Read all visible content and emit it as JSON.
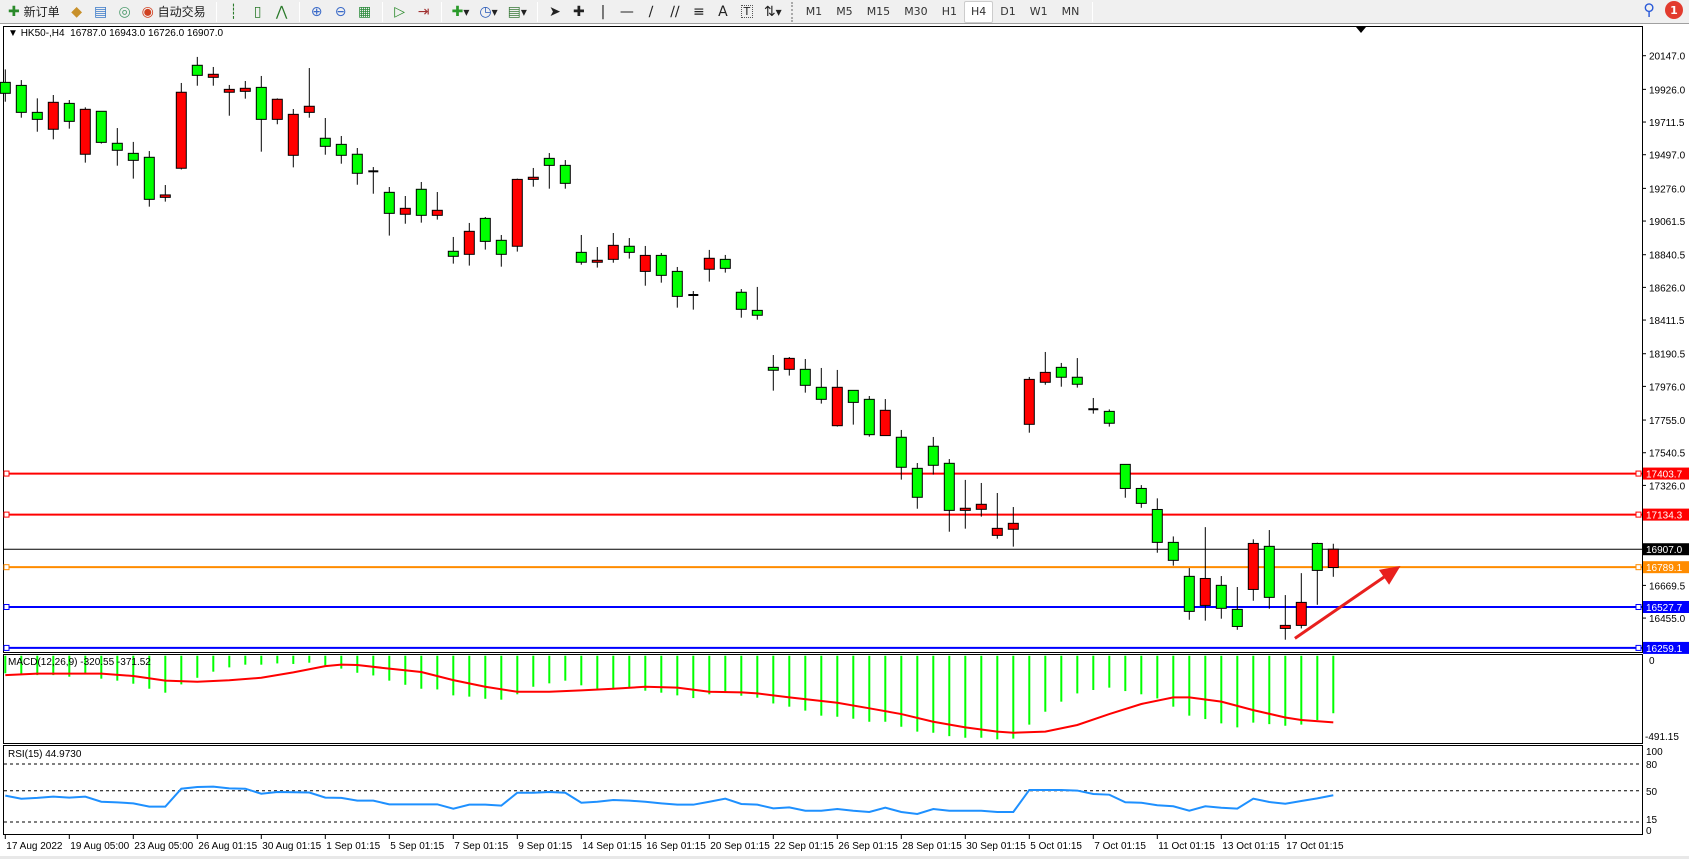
{
  "toolbar": {
    "new_order_label": "新订单",
    "auto_trading_label": "自动交易",
    "icons": [
      "new-order-icon",
      "market-watch-icon",
      "data-window-icon",
      "navigator-icon",
      "auto-trading-icon",
      "bar-chart-icon",
      "candlestick-icon",
      "line-chart-icon",
      "zoom-in-icon",
      "zoom-out-icon",
      "tile-windows-icon",
      "auto-scroll-icon",
      "chart-shift-icon",
      "indicators-icon",
      "periods-icon",
      "templates-icon",
      "cursor-icon",
      "crosshair-icon",
      "vertical-line-icon",
      "horizontal-line-icon",
      "trendline-icon",
      "equidistant-channel-icon",
      "fibonacci-icon",
      "text-icon",
      "text-label-icon",
      "arrows-icon"
    ],
    "draw_text_glyph": "A",
    "timeframes": [
      "M1",
      "M5",
      "M15",
      "M30",
      "H1",
      "H4",
      "D1",
      "W1",
      "MN"
    ],
    "active_timeframe": "H4",
    "notification_count": "1"
  },
  "chart_header": {
    "symbol": "HK50-,H4",
    "ohlc": "16787.0 16943.0 16726.0 16907.0"
  },
  "chart_data": {
    "type": "candlestick",
    "symbol": "HK50-",
    "timeframe": "H4",
    "colors": {
      "bull": "#ff0000",
      "bear": "#00ff00",
      "outline": "#000000"
    },
    "candles_ohlc": [
      [
        19972,
        20057,
        19845,
        19900
      ],
      [
        19952,
        19987,
        19740,
        19775
      ],
      [
        19775,
        19867,
        19648,
        19729
      ],
      [
        19664,
        19889,
        19598,
        19841
      ],
      [
        19834,
        19856,
        19668,
        19716
      ],
      [
        19500,
        19808,
        19445,
        19795
      ],
      [
        19782,
        19784,
        19570,
        19578
      ],
      [
        19572,
        19672,
        19425,
        19526
      ],
      [
        19506,
        19581,
        19340,
        19460
      ],
      [
        19480,
        19521,
        19156,
        19204
      ],
      [
        19217,
        19298,
        19189,
        19233
      ],
      [
        19408,
        19968,
        19400,
        19907
      ],
      [
        20084,
        20139,
        19950,
        20018
      ],
      [
        20005,
        20073,
        19950,
        20025
      ],
      [
        19907,
        19955,
        19753,
        19926
      ],
      [
        19913,
        19981,
        19865,
        19933
      ],
      [
        19939,
        20014,
        19517,
        19729
      ],
      [
        19729,
        19867,
        19697,
        19861
      ],
      [
        19493,
        19797,
        19414,
        19762
      ],
      [
        19775,
        20066,
        19740,
        19815
      ],
      [
        19605,
        19738,
        19497,
        19552
      ],
      [
        19565,
        19620,
        19438,
        19493
      ],
      [
        19500,
        19541,
        19300,
        19375
      ],
      [
        19388,
        19416,
        19241,
        19388
      ],
      [
        19250,
        19285,
        18966,
        19112
      ],
      [
        19106,
        19226,
        19044,
        19145
      ],
      [
        19270,
        19318,
        19051,
        19099
      ],
      [
        19099,
        19252,
        19071,
        19132
      ],
      [
        18863,
        18957,
        18782,
        18830
      ],
      [
        18843,
        19049,
        18769,
        18994
      ],
      [
        19079,
        19088,
        18874,
        18928
      ],
      [
        18935,
        18970,
        18762,
        18843
      ],
      [
        18896,
        19340,
        18861,
        19335
      ],
      [
        19335,
        19410,
        19287,
        19349
      ],
      [
        19473,
        19508,
        19274,
        19427
      ],
      [
        19427,
        19462,
        19274,
        19309
      ],
      [
        18856,
        18970,
        18775,
        18791
      ],
      [
        18791,
        18891,
        18756,
        18804
      ],
      [
        18810,
        18983,
        18788,
        18902
      ],
      [
        18896,
        18950,
        18815,
        18856
      ],
      [
        18731,
        18898,
        18637,
        18836
      ],
      [
        18836,
        18852,
        18657,
        18705
      ],
      [
        18731,
        18760,
        18493,
        18567
      ],
      [
        18576,
        18602,
        18480,
        18572
      ],
      [
        18745,
        18872,
        18664,
        18817
      ],
      [
        18810,
        18839,
        18723,
        18751
      ],
      [
        18594,
        18615,
        18427,
        18482
      ],
      [
        18475,
        18629,
        18414,
        18443
      ],
      [
        18101,
        18182,
        17948,
        18082
      ],
      [
        18088,
        18169,
        18047,
        18160
      ],
      [
        18088,
        18156,
        17935,
        17983
      ],
      [
        17970,
        18097,
        17863,
        17891
      ],
      [
        17718,
        18084,
        17712,
        17970
      ],
      [
        17950,
        17950,
        17725,
        17871
      ],
      [
        17891,
        17913,
        17646,
        17659
      ],
      [
        17653,
        17893,
        17653,
        17819
      ],
      [
        17642,
        17690,
        17364,
        17445
      ],
      [
        17438,
        17473,
        17173,
        17248
      ],
      [
        17583,
        17644,
        17397,
        17458
      ],
      [
        17471,
        17499,
        17022,
        17162
      ],
      [
        17162,
        17362,
        17042,
        17176
      ],
      [
        17169,
        17342,
        17121,
        17202
      ],
      [
        16998,
        17276,
        16976,
        17044
      ],
      [
        17038,
        17184,
        16924,
        17077
      ],
      [
        17727,
        18038,
        17672,
        18022
      ],
      [
        18003,
        18202,
        17987,
        18068
      ],
      [
        18101,
        18130,
        17974,
        18036
      ],
      [
        18036,
        18162,
        17968,
        17990
      ],
      [
        17826,
        17900,
        17797,
        17824
      ],
      [
        17812,
        17825,
        17712,
        17734
      ],
      [
        17464,
        17466,
        17245,
        17306
      ],
      [
        17306,
        17328,
        17179,
        17208
      ],
      [
        17168,
        17241,
        16884,
        16952
      ],
      [
        16952,
        16991,
        16799,
        16834
      ],
      [
        16729,
        16783,
        16444,
        16499
      ],
      [
        16538,
        17052,
        16438,
        16715
      ],
      [
        16670,
        16731,
        16451,
        16519
      ],
      [
        16512,
        16659,
        16378,
        16400
      ],
      [
        16643,
        16972,
        16569,
        16945
      ],
      [
        16926,
        17033,
        16516,
        16591
      ],
      [
        16387,
        16606,
        16313,
        16407
      ],
      [
        16407,
        16750,
        16387,
        16558
      ],
      [
        16945,
        16950,
        16542,
        16768
      ],
      [
        16787,
        16943,
        16726,
        16907
      ]
    ],
    "price_axis_ticks": [
      "20147.0",
      "19926.0",
      "19711.5",
      "19497.0",
      "19276.0",
      "19061.5",
      "18840.5",
      "18626.0",
      "18411.5",
      "18190.5",
      "17976.0",
      "17755.0",
      "17540.5",
      "17326.0",
      "16669.5",
      "16455.0"
    ],
    "horizontal_lines": [
      {
        "price": 17403.7,
        "label": "17403.7",
        "color": "#ff0000"
      },
      {
        "price": 17134.3,
        "label": "17134.3",
        "color": "#ff0000"
      },
      {
        "price": 16907.0,
        "label": "16907.0",
        "color": "#000000",
        "current": true
      },
      {
        "price": 16789.1,
        "label": "16789.1",
        "color": "#ff8c00"
      },
      {
        "price": 16527.7,
        "label": "16527.7",
        "color": "#0000ff"
      },
      {
        "price": 16259.1,
        "label": "16259.1",
        "color": "#0000ff"
      }
    ],
    "arrow_annotation": {
      "color": "#e8201e",
      "from": {
        "bar": 80.6,
        "price": 16322
      },
      "to": {
        "bar": 87.2,
        "price": 16797
      }
    },
    "time_axis_labels": [
      {
        "bar": 0,
        "label": "17 Aug 2022"
      },
      {
        "bar": 4,
        "label": "19 Aug 05:00"
      },
      {
        "bar": 8,
        "label": "23 Aug 05:00"
      },
      {
        "bar": 12,
        "label": "26 Aug 01:15"
      },
      {
        "bar": 16,
        "label": "30 Aug 01:15"
      },
      {
        "bar": 20,
        "label": "1 Sep 01:15"
      },
      {
        "bar": 24,
        "label": "5 Sep 01:15"
      },
      {
        "bar": 28,
        "label": "7 Sep 01:15"
      },
      {
        "bar": 32,
        "label": "9 Sep 01:15"
      },
      {
        "bar": 36,
        "label": "14 Sep 01:15"
      },
      {
        "bar": 40,
        "label": "16 Sep 01:15"
      },
      {
        "bar": 44,
        "label": "20 Sep 01:15"
      },
      {
        "bar": 48,
        "label": "22 Sep 01:15"
      },
      {
        "bar": 52,
        "label": "26 Sep 01:15"
      },
      {
        "bar": 56,
        "label": "28 Sep 01:15"
      },
      {
        "bar": 60,
        "label": "30 Sep 01:15"
      },
      {
        "bar": 64,
        "label": "5 Oct 01:15"
      },
      {
        "bar": 68,
        "label": "7 Oct 01:15"
      },
      {
        "bar": 72,
        "label": "11 Oct 01:15"
      },
      {
        "bar": 76,
        "label": "13 Oct 01:15"
      },
      {
        "bar": 80,
        "label": "17 Oct 01:15"
      }
    ],
    "macd": {
      "label": "MACD(12,26,9) -320.55 -371.52",
      "axis_labels": [
        "0",
        "-491.15"
      ],
      "histogram_color": "#00ff00",
      "signal_color": "#ff0000",
      "histogram": [
        -98,
        -108,
        -108,
        -108,
        -117,
        -98,
        -128,
        -139,
        -156,
        -184,
        -206,
        -160,
        -123,
        -89,
        -65,
        -50,
        -50,
        -43,
        -46,
        -39,
        -54,
        -72,
        -95,
        -110,
        -139,
        -162,
        -184,
        -188,
        -221,
        -228,
        -240,
        -245,
        -215,
        -173,
        -154,
        -139,
        -165,
        -184,
        -184,
        -182,
        -195,
        -206,
        -221,
        -236,
        -215,
        -201,
        -223,
        -234,
        -266,
        -284,
        -306,
        -334,
        -340,
        -351,
        -368,
        -368,
        -396,
        -423,
        -429,
        -448,
        -457,
        -457,
        -466,
        -462,
        -384,
        -312,
        -256,
        -210,
        -191,
        -178,
        -197,
        -215,
        -238,
        -284,
        -334,
        -353,
        -377,
        -399,
        -373,
        -381,
        -390,
        -384,
        -358,
        -320.55
      ],
      "signal_points": [
        [
          0,
          -108
        ],
        [
          2,
          -100
        ],
        [
          6,
          -100
        ],
        [
          8,
          -113
        ],
        [
          10,
          -139
        ],
        [
          12,
          -145
        ],
        [
          14,
          -137
        ],
        [
          16,
          -123
        ],
        [
          18,
          -93
        ],
        [
          20,
          -58
        ],
        [
          21,
          -50
        ],
        [
          22,
          -52
        ],
        [
          24,
          -72
        ],
        [
          26,
          -91
        ],
        [
          28,
          -136
        ],
        [
          30,
          -173
        ],
        [
          32,
          -201
        ],
        [
          34,
          -201
        ],
        [
          36,
          -193
        ],
        [
          38,
          -184
        ],
        [
          40,
          -173
        ],
        [
          42,
          -178
        ],
        [
          44,
          -201
        ],
        [
          46,
          -204
        ],
        [
          47,
          -210
        ],
        [
          49,
          -232
        ],
        [
          52,
          -262
        ],
        [
          54,
          -293
        ],
        [
          56,
          -325
        ],
        [
          58,
          -368
        ],
        [
          60,
          -399
        ],
        [
          62,
          -423
        ],
        [
          63,
          -429
        ],
        [
          65,
          -423
        ],
        [
          67,
          -386
        ],
        [
          69,
          -325
        ],
        [
          71,
          -269
        ],
        [
          73,
          -232
        ],
        [
          74,
          -232
        ],
        [
          76,
          -256
        ],
        [
          78,
          -303
        ],
        [
          80,
          -344
        ],
        [
          81,
          -358
        ],
        [
          83,
          -371.52
        ]
      ]
    },
    "rsi": {
      "label": "RSI(15) 44.9730",
      "axis_labels": [
        "100",
        "80",
        "50",
        "15",
        "0"
      ],
      "levels": [
        80,
        50,
        15
      ],
      "color": "#1e90ff",
      "values": [
        44.5,
        41,
        42,
        43.4,
        42.3,
        43.4,
        37.7,
        37,
        35.9,
        32.2,
        32.2,
        52.3,
        54.2,
        54.6,
        52.7,
        52.3,
        46.7,
        48.6,
        48.3,
        48,
        42.3,
        42,
        38.9,
        38.9,
        34.8,
        34.8,
        34.8,
        34.8,
        29.9,
        34.4,
        34.4,
        33.3,
        47.8,
        47.8,
        48.6,
        47.8,
        36.6,
        37.7,
        39.6,
        38.9,
        37.7,
        35.9,
        34.4,
        34.4,
        37.7,
        41.1,
        35.2,
        34.4,
        30.3,
        31.4,
        27.6,
        27.6,
        29.5,
        27.6,
        26.2,
        31,
        26.2,
        24,
        29.5,
        27.6,
        27.6,
        27.6,
        26.2,
        26.2,
        50.9,
        50.9,
        50.9,
        50.2,
        46.4,
        45.6,
        37.1,
        36.6,
        33.7,
        32.6,
        27.6,
        32.6,
        31,
        30,
        41.1,
        37.4,
        35.5,
        38.5,
        41.5,
        44.973
      ]
    }
  }
}
